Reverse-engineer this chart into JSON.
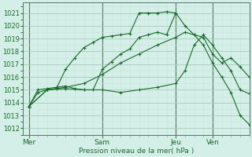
{
  "background_color": "#d4eee8",
  "grid_major_color": "#aaccbb",
  "grid_minor_color": "#c8e4dc",
  "line_color": "#1a6b2a",
  "ylabel": "Pression niveau de la mer( hPa )",
  "ylim": [
    1011.5,
    1021.8
  ],
  "yticks": [
    1012,
    1013,
    1014,
    1015,
    1016,
    1017,
    1018,
    1019,
    1020,
    1021
  ],
  "xtick_labels": [
    "Mer",
    "Sam",
    "Jeu",
    "Ven"
  ],
  "xtick_positions": [
    0,
    24,
    48,
    60
  ],
  "xlim": [
    -2,
    72
  ],
  "series": [
    {
      "x": [
        0,
        3,
        6,
        9,
        12,
        15,
        18,
        21,
        24,
        27,
        30,
        33,
        36,
        39,
        42,
        45,
        48
      ],
      "y": [
        1013.7,
        1014.8,
        1015.0,
        1015.1,
        1016.6,
        1017.5,
        1018.3,
        1018.7,
        1019.1,
        1019.2,
        1019.3,
        1019.4,
        1021.0,
        1021.0,
        1021.0,
        1021.1,
        1021.0
      ]
    },
    {
      "x": [
        0,
        3,
        6,
        9,
        12,
        15,
        18,
        21,
        24,
        27,
        30,
        33,
        36,
        39,
        42,
        45,
        48,
        51,
        54,
        57,
        60,
        63,
        66,
        69,
        72
      ],
      "y": [
        1013.7,
        1015.0,
        1015.1,
        1015.2,
        1015.3,
        1015.1,
        1015.0,
        1015.0,
        1016.6,
        1017.2,
        1017.8,
        1018.2,
        1019.1,
        1019.3,
        1019.5,
        1019.3,
        1021.0,
        1020.0,
        1019.3,
        1018.5,
        1017.1,
        1016.0,
        1014.8,
        1013.0,
        1012.3
      ]
    },
    {
      "x": [
        0,
        6,
        12,
        18,
        24,
        30,
        36,
        42,
        48,
        51,
        54,
        57,
        60,
        63,
        66,
        69,
        72
      ],
      "y": [
        1013.7,
        1015.0,
        1015.2,
        1015.5,
        1016.2,
        1017.1,
        1017.8,
        1018.5,
        1019.1,
        1019.5,
        1019.3,
        1019.1,
        1017.8,
        1017.1,
        1017.5,
        1016.8,
        1016.0
      ]
    },
    {
      "x": [
        0,
        6,
        12,
        18,
        24,
        30,
        36,
        42,
        48,
        51,
        54,
        57,
        60,
        63,
        66,
        69,
        72
      ],
      "y": [
        1013.7,
        1015.0,
        1015.1,
        1015.0,
        1015.0,
        1014.8,
        1015.0,
        1015.2,
        1015.5,
        1016.5,
        1018.5,
        1019.3,
        1018.5,
        1017.5,
        1016.5,
        1015.0,
        1014.7
      ]
    }
  ]
}
